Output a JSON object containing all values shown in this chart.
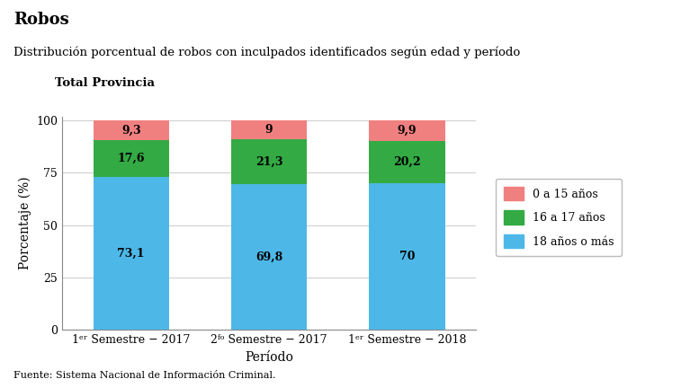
{
  "title_main": "Robos",
  "title_sub_line1": "Distribución porcentual de robos con inculpados identificados según edad y período",
  "title_sub_line2": "Total Provincia",
  "xlabel": "Período",
  "ylabel": "Porcentaje (%)",
  "source": "Fuente: Sistema Nacional de Información Criminal.",
  "categories": [
    "1ᵉʳ Semestre − 2017",
    "2ᶠᵒ Semestre − 2017",
    "1ᵉʳ Semestre − 2018"
  ],
  "series": {
    "18 años o más": [
      73.1,
      69.8,
      70.0
    ],
    "16 a 17 años": [
      17.6,
      21.3,
      20.2
    ],
    "0 a 15 años": [
      9.3,
      9.0,
      9.9
    ]
  },
  "colors": {
    "18 años o más": "#4db8e8",
    "16 a 17 años": "#33aa44",
    "0 a 15 años": "#f08080"
  },
  "labels": {
    "18 años o más": [
      "73,1",
      "69,8",
      "70"
    ],
    "16 a 17 años": [
      "17,6",
      "21,3",
      "20,2"
    ],
    "0 a 15 años": [
      "9,3",
      "9",
      "9,9"
    ]
  },
  "ylim": [
    0,
    102
  ],
  "yticks": [
    0,
    25,
    50,
    75,
    100
  ],
  "bar_width": 0.55,
  "background_color": "#ffffff",
  "plot_bg_color": "#ffffff",
  "grid_color": "#d0d0d0"
}
